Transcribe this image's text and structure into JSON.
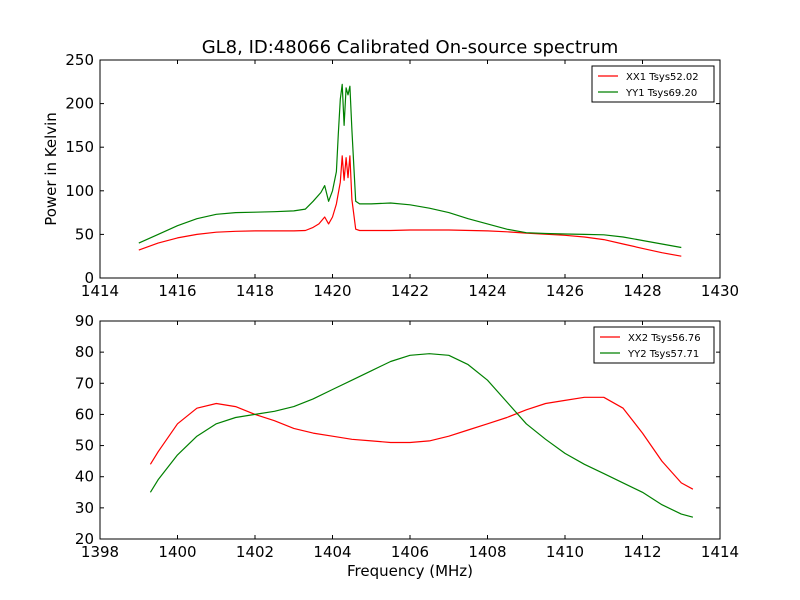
{
  "figure": {
    "title": "GL8, ID:48066 Calibrated On-source spectrum"
  },
  "colors": {
    "red": "#ff0000",
    "green": "#008000"
  },
  "chart_data": [
    {
      "type": "line",
      "title": "GL8, ID:48066 Calibrated On-source spectrum",
      "xlabel": "",
      "ylabel": "Power in Kelvin",
      "xlim": [
        1414,
        1430
      ],
      "ylim": [
        0,
        250
      ],
      "xticks": [
        1414,
        1416,
        1418,
        1420,
        1422,
        1424,
        1426,
        1428,
        1430
      ],
      "yticks": [
        0,
        50,
        100,
        150,
        200,
        250
      ],
      "legend": "top-right",
      "grid": false,
      "series": [
        {
          "name": "XX1 Tsys52.02",
          "color": "#ff0000",
          "x": [
            1415.0,
            1415.5,
            1416.0,
            1416.5,
            1417.0,
            1417.5,
            1418.0,
            1418.5,
            1419.0,
            1419.3,
            1419.5,
            1419.65,
            1419.8,
            1419.9,
            1420.0,
            1420.1,
            1420.2,
            1420.25,
            1420.3,
            1420.35,
            1420.4,
            1420.45,
            1420.5,
            1420.6,
            1420.7,
            1421.0,
            1421.5,
            1422.0,
            1423.0,
            1424.0,
            1424.5,
            1425.0,
            1426.0,
            1426.5,
            1427.0,
            1427.5,
            1428.0,
            1428.5,
            1429.0
          ],
          "values": [
            32,
            40,
            46,
            50,
            52.5,
            53.5,
            54,
            54,
            54,
            54.5,
            58,
            62,
            70,
            62,
            70,
            85,
            110,
            140,
            112,
            138,
            115,
            140,
            90,
            56,
            54.5,
            54.5,
            54.5,
            55,
            55,
            54,
            53,
            51.5,
            49,
            47,
            44,
            39,
            34,
            29,
            25
          ]
        },
        {
          "name": "YY1 Tsys69.20",
          "color": "#008000",
          "x": [
            1415.0,
            1415.5,
            1416.0,
            1416.5,
            1417.0,
            1417.5,
            1418.0,
            1418.5,
            1419.0,
            1419.3,
            1419.5,
            1419.7,
            1419.8,
            1419.9,
            1420.0,
            1420.1,
            1420.15,
            1420.2,
            1420.25,
            1420.3,
            1420.35,
            1420.4,
            1420.45,
            1420.5,
            1420.6,
            1420.7,
            1421.0,
            1421.5,
            1422.0,
            1422.5,
            1423.0,
            1423.5,
            1424.0,
            1424.5,
            1425.0,
            1425.5,
            1426.0,
            1426.5,
            1427.0,
            1427.5,
            1428.0,
            1428.5,
            1429.0
          ],
          "values": [
            40,
            50,
            60,
            68,
            73,
            75,
            75.5,
            76,
            77,
            79,
            88,
            98,
            106,
            88,
            100,
            122,
            165,
            205,
            222,
            175,
            218,
            210,
            220,
            170,
            88,
            85,
            85,
            86,
            84,
            80,
            75,
            68,
            62,
            56,
            52,
            51,
            50.5,
            50,
            49.5,
            47,
            43,
            39,
            35
          ]
        }
      ]
    },
    {
      "type": "line",
      "title": "",
      "xlabel": "Frequency (MHz)",
      "ylabel": "",
      "xlim": [
        1398,
        1414
      ],
      "ylim": [
        20,
        90
      ],
      "xticks": [
        1398,
        1400,
        1402,
        1404,
        1406,
        1408,
        1410,
        1412,
        1414
      ],
      "yticks": [
        20,
        30,
        40,
        50,
        60,
        70,
        80,
        90
      ],
      "legend": "top-right",
      "grid": false,
      "series": [
        {
          "name": "XX2 Tsys56.76",
          "color": "#ff0000",
          "x": [
            1399.3,
            1399.5,
            1400.0,
            1400.5,
            1401.0,
            1401.5,
            1402.0,
            1402.5,
            1403.0,
            1403.5,
            1404.0,
            1404.5,
            1405.0,
            1405.5,
            1406.0,
            1406.5,
            1407.0,
            1407.5,
            1408.0,
            1408.5,
            1409.0,
            1409.5,
            1410.0,
            1410.5,
            1411.0,
            1411.5,
            1412.0,
            1412.5,
            1413.0,
            1413.3
          ],
          "values": [
            44,
            48,
            57,
            62,
            63.5,
            62.5,
            60,
            58,
            55.5,
            54,
            53,
            52,
            51.5,
            51,
            51,
            51.5,
            53,
            55,
            57,
            59,
            61.5,
            63.5,
            64.5,
            65.5,
            65.5,
            62,
            54,
            45,
            38,
            36
          ]
        },
        {
          "name": "YY2 Tsys57.71",
          "color": "#008000",
          "x": [
            1399.3,
            1399.5,
            1400.0,
            1400.5,
            1401.0,
            1401.5,
            1402.0,
            1402.5,
            1403.0,
            1403.5,
            1404.0,
            1404.5,
            1405.0,
            1405.5,
            1406.0,
            1406.5,
            1407.0,
            1407.5,
            1408.0,
            1408.5,
            1409.0,
            1409.5,
            1410.0,
            1410.5,
            1411.0,
            1411.5,
            1412.0,
            1412.5,
            1413.0,
            1413.3
          ],
          "values": [
            35,
            39,
            47,
            53,
            57,
            59,
            60,
            61,
            62.5,
            65,
            68,
            71,
            74,
            77,
            79,
            79.5,
            79,
            76,
            71,
            64,
            57,
            52,
            47.5,
            44,
            41,
            38,
            35,
            31,
            28,
            27
          ]
        }
      ]
    }
  ]
}
